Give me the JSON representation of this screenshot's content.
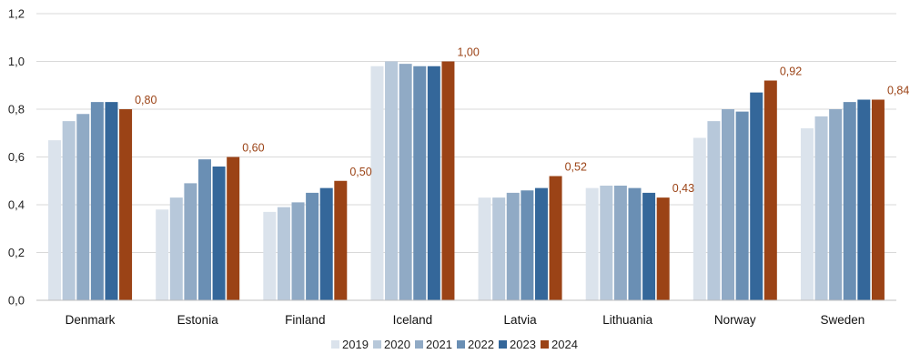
{
  "chart_data": {
    "type": "bar",
    "categories": [
      "Denmark",
      "Estonia",
      "Finland",
      "Iceland",
      "Latvia",
      "Lithuania",
      "Norway",
      "Sweden"
    ],
    "series": [
      {
        "name": "2019",
        "color": "#dbe3ec",
        "values": [
          0.67,
          0.38,
          0.37,
          0.98,
          0.43,
          0.47,
          0.68,
          0.72
        ]
      },
      {
        "name": "2020",
        "color": "#b7c8da",
        "values": [
          0.75,
          0.43,
          0.39,
          1.0,
          0.43,
          0.48,
          0.75,
          0.77
        ]
      },
      {
        "name": "2021",
        "color": "#90aac5",
        "values": [
          0.78,
          0.49,
          0.41,
          0.99,
          0.45,
          0.48,
          0.8,
          0.8
        ]
      },
      {
        "name": "2022",
        "color": "#6a8fb4",
        "values": [
          0.83,
          0.59,
          0.45,
          0.98,
          0.46,
          0.47,
          0.79,
          0.83
        ]
      },
      {
        "name": "2023",
        "color": "#34679a",
        "values": [
          0.83,
          0.56,
          0.47,
          0.98,
          0.47,
          0.45,
          0.87,
          0.84
        ]
      },
      {
        "name": "2024",
        "color": "#9b4316",
        "values": [
          0.8,
          0.6,
          0.5,
          1.0,
          0.52,
          0.43,
          0.92,
          0.84
        ]
      }
    ],
    "data_labels": {
      "series": "2024",
      "color": "#9b4316",
      "texts": [
        "0,80",
        "0,60",
        "0,50",
        "1,00",
        "0,52",
        "0,43",
        "0,92",
        "0,84"
      ]
    },
    "y_ticks": [
      "0,0",
      "0,2",
      "0,4",
      "0,6",
      "0,8",
      "1,0",
      "1,2"
    ],
    "ylim": [
      0,
      1.2
    ],
    "grid": true,
    "gridline_color": "#d9d9d9",
    "legend_position": "bottom",
    "title": "",
    "xlabel": "",
    "ylabel": ""
  }
}
